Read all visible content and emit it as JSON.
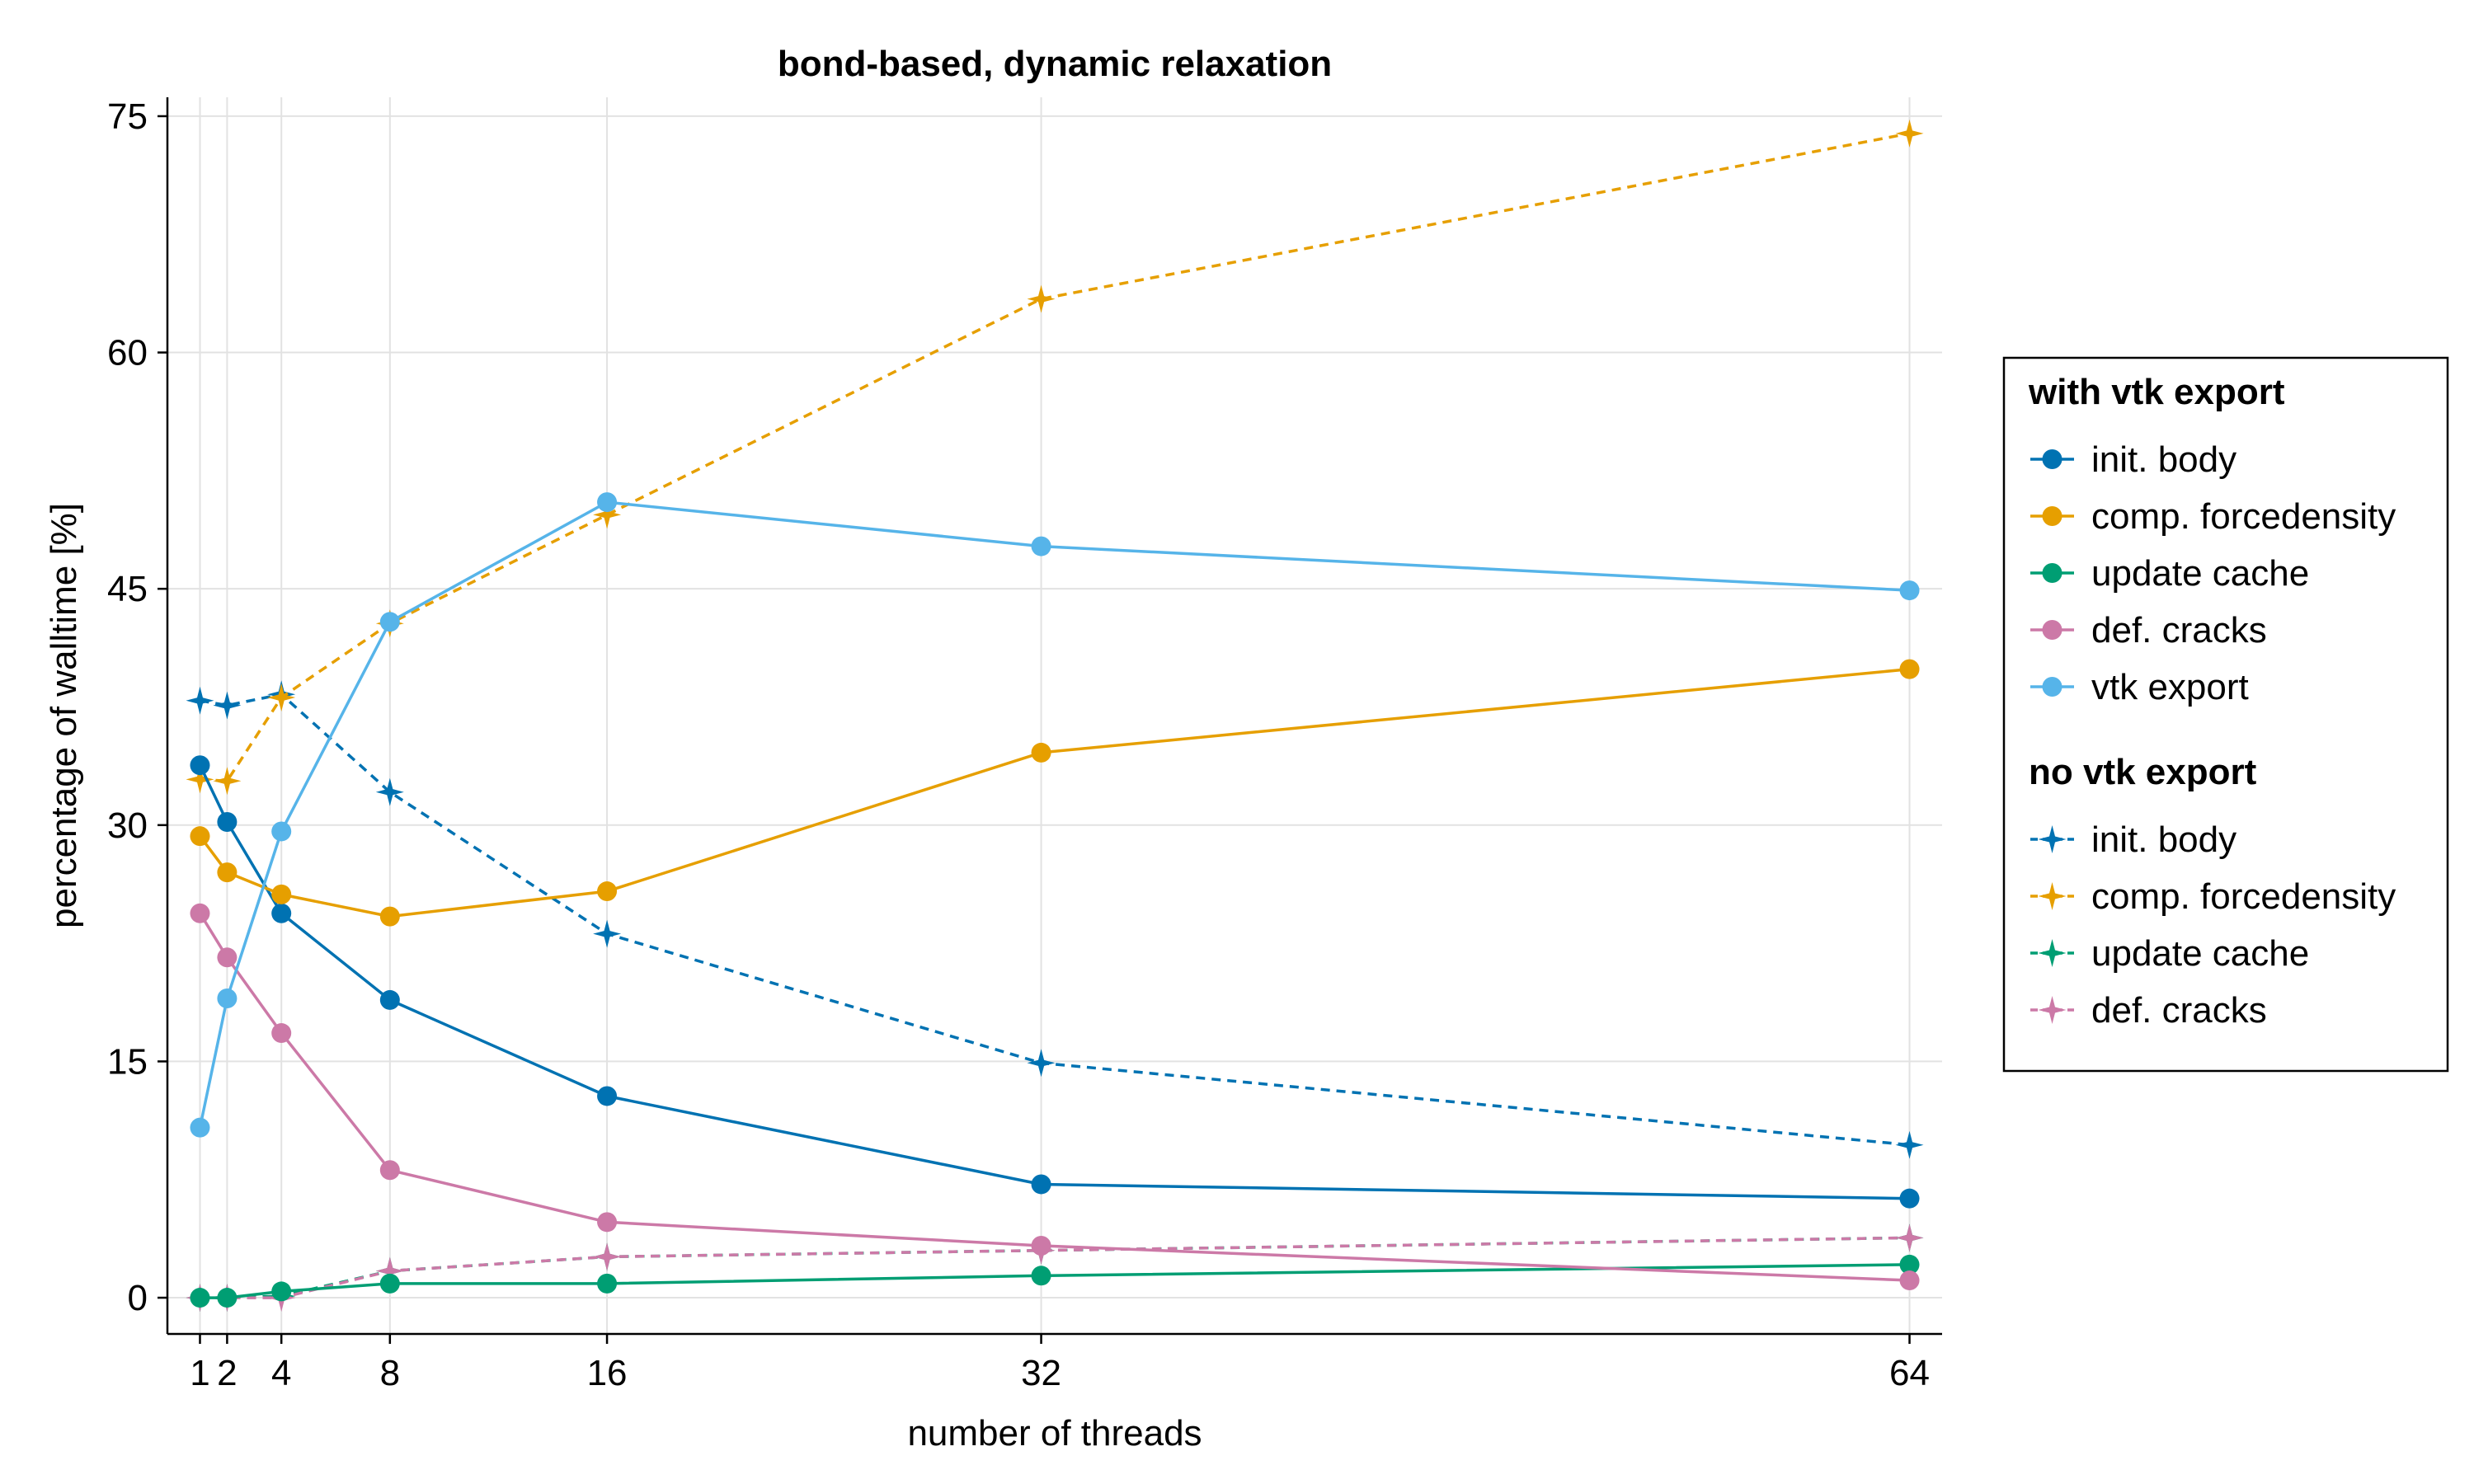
{
  "chart_data": {
    "type": "line",
    "title": "bond-based, dynamic relaxation",
    "xlabel": "number of threads",
    "ylabel": "percentage of walltime [%]",
    "x": [
      1,
      2,
      4,
      8,
      16,
      32,
      64
    ],
    "x_ticks": [
      "1",
      "2",
      "4",
      "8",
      "16",
      "32",
      "64"
    ],
    "y_ticks": [
      "0",
      "15",
      "30",
      "45",
      "60",
      "75"
    ],
    "xlim": [
      -0.2,
      65.2
    ],
    "ylim": [
      -2.3,
      76.2
    ],
    "grid": true,
    "legend_position": "right",
    "groups": [
      {
        "title": "with vtk export",
        "line_style": "solid",
        "marker": "circle",
        "series": [
          {
            "name": "init. body",
            "color": "#0072b2",
            "values": [
              33.8,
              30.2,
              24.4,
              18.9,
              12.8,
              7.2,
              6.3
            ]
          },
          {
            "name": "comp. forcedensity",
            "color": "#e69f00",
            "values": [
              29.3,
              27.0,
              25.6,
              24.2,
              25.8,
              34.6,
              39.9
            ]
          },
          {
            "name": "update cache",
            "color": "#009e73",
            "values": [
              0.0,
              0.0,
              0.4,
              0.9,
              0.9,
              1.4,
              2.1
            ]
          },
          {
            "name": "def. cracks",
            "color": "#cc79a7",
            "values": [
              24.4,
              21.6,
              16.8,
              8.1,
              4.8,
              3.3,
              1.1
            ]
          },
          {
            "name": "vtk export",
            "color": "#56b4e9",
            "values": [
              10.8,
              19.0,
              29.6,
              42.9,
              50.5,
              47.7,
              44.9
            ]
          }
        ]
      },
      {
        "title": "no vtk export",
        "line_style": "dashed",
        "marker": "star4",
        "series": [
          {
            "name": "init. body",
            "color": "#0072b2",
            "values": [
              37.9,
              37.6,
              38.3,
              32.1,
              23.1,
              14.9,
              9.7
            ]
          },
          {
            "name": "comp. forcedensity",
            "color": "#e69f00",
            "values": [
              32.9,
              32.8,
              38.1,
              42.8,
              49.7,
              63.4,
              73.9
            ]
          },
          {
            "name": "update cache",
            "color": "#009e73",
            "values": [
              0.0,
              0.0,
              0.1,
              1.7,
              2.6,
              3.0,
              3.8
            ]
          },
          {
            "name": "def. cracks",
            "color": "#cc79a7",
            "values": [
              0.0,
              0.0,
              0.0,
              1.7,
              2.6,
              3.0,
              3.8
            ]
          }
        ]
      }
    ]
  }
}
